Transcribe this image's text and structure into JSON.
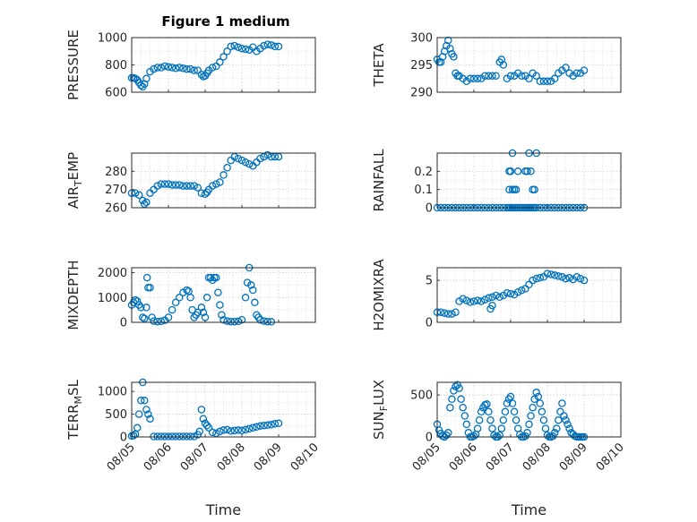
{
  "figure_title": "Figure 1 medium",
  "x_ticks": [
    "08/05",
    "08/06",
    "08/07",
    "08/08",
    "08/09",
    "08/10"
  ],
  "x_label": "Time",
  "marker_color": "#0072BD",
  "chart_data": [
    {
      "type": "scatter",
      "ylabel": "PRESSURE",
      "ylim": [
        600,
        1000
      ],
      "yticks": [
        "600",
        "800",
        "1000"
      ],
      "grid": true,
      "x_range_days": [
        0,
        5
      ],
      "series": [
        {
          "x": [
            0.0,
            0.05,
            0.1,
            0.15,
            0.2,
            0.25,
            0.3,
            0.35,
            0.4,
            0.5,
            0.6,
            0.7,
            0.8,
            0.9,
            1.0,
            1.1,
            1.2,
            1.3,
            1.4,
            1.5,
            1.6,
            1.7,
            1.8,
            1.9,
            1.95,
            2.0,
            2.05,
            2.1,
            2.2,
            2.3,
            2.4,
            2.5,
            2.6,
            2.7,
            2.8,
            2.9,
            3.0,
            3.1,
            3.2,
            3.3,
            3.4,
            3.5,
            3.6,
            3.7,
            3.8,
            3.9,
            4.0
          ],
          "y": [
            705,
            705,
            700,
            690,
            670,
            650,
            640,
            660,
            700,
            750,
            770,
            780,
            780,
            790,
            785,
            780,
            775,
            780,
            775,
            770,
            770,
            760,
            760,
            730,
            715,
            720,
            740,
            760,
            780,
            790,
            820,
            860,
            900,
            935,
            940,
            930,
            920,
            915,
            910,
            930,
            900,
            920,
            940,
            950,
            945,
            935,
            935
          ]
        }
      ]
    },
    {
      "type": "scatter",
      "ylabel": "THETA",
      "ylim": [
        290,
        300
      ],
      "yticks": [
        "290",
        "295",
        "300"
      ],
      "grid": true,
      "x_range_days": [
        0,
        5
      ],
      "series": [
        {
          "x": [
            0.0,
            0.05,
            0.1,
            0.15,
            0.2,
            0.25,
            0.3,
            0.35,
            0.4,
            0.45,
            0.5,
            0.55,
            0.6,
            0.7,
            0.8,
            0.9,
            1.0,
            1.1,
            1.2,
            1.3,
            1.4,
            1.5,
            1.6,
            1.7,
            1.75,
            1.8,
            1.9,
            2.0,
            2.1,
            2.2,
            2.3,
            2.4,
            2.5,
            2.6,
            2.7,
            2.8,
            2.9,
            3.0,
            3.1,
            3.2,
            3.3,
            3.4,
            3.5,
            3.6,
            3.7,
            3.8,
            3.9,
            4.0
          ],
          "y": [
            296,
            295.5,
            295.5,
            296.5,
            297.5,
            298.5,
            299.5,
            298,
            297,
            296.5,
            293.5,
            293,
            293,
            292.5,
            292,
            292.5,
            292.5,
            292.5,
            292.5,
            293,
            293,
            293,
            293,
            295.5,
            296,
            295,
            292.5,
            293,
            293,
            293.5,
            293,
            293,
            292.5,
            293.5,
            293,
            292,
            292,
            292,
            292,
            292.5,
            293.5,
            294,
            294.5,
            293.5,
            293,
            293.5,
            293.5,
            294
          ]
        }
      ]
    },
    {
      "type": "scatter",
      "ylabel": "AIR_TEMP",
      "ylim": [
        260,
        290
      ],
      "yticks": [
        "260",
        "270",
        "280"
      ],
      "grid": true,
      "x_range_days": [
        0,
        5
      ],
      "series": [
        {
          "x": [
            0.0,
            0.1,
            0.2,
            0.3,
            0.35,
            0.4,
            0.5,
            0.6,
            0.7,
            0.8,
            0.9,
            1.0,
            1.1,
            1.2,
            1.3,
            1.4,
            1.5,
            1.6,
            1.7,
            1.8,
            1.9,
            2.0,
            2.05,
            2.1,
            2.2,
            2.3,
            2.4,
            2.5,
            2.6,
            2.7,
            2.8,
            2.9,
            3.0,
            3.1,
            3.2,
            3.3,
            3.4,
            3.5,
            3.6,
            3.7,
            3.8,
            3.9,
            4.0
          ],
          "y": [
            268,
            268,
            267,
            264,
            262,
            263,
            268,
            270,
            272,
            273,
            273,
            273,
            272.5,
            272.5,
            272.5,
            272,
            272,
            272,
            272,
            271,
            268,
            267.5,
            268.5,
            270,
            272,
            273,
            274,
            278,
            282,
            286,
            288,
            287,
            286,
            285,
            284,
            283,
            285,
            287,
            288,
            289,
            288,
            288,
            288
          ]
        }
      ]
    },
    {
      "type": "scatter",
      "ylabel": "RAINFALL",
      "ylim": [
        0,
        0.3
      ],
      "yticks": [
        "0",
        "0.1",
        "0.2"
      ],
      "grid": true,
      "x_range_days": [
        0,
        5
      ],
      "series": [
        {
          "x": [
            0.0,
            0.1,
            0.2,
            0.3,
            0.4,
            0.5,
            0.6,
            0.7,
            0.8,
            0.9,
            1.0,
            1.1,
            1.2,
            1.3,
            1.4,
            1.5,
            1.6,
            1.7,
            1.8,
            1.9,
            1.95,
            2.0,
            2.05,
            2.1,
            2.15,
            2.2,
            2.25,
            2.3,
            2.35,
            2.4,
            2.45,
            2.5,
            2.55,
            2.6,
            2.65,
            2.7,
            2.8,
            2.9,
            3.0,
            3.1,
            3.2,
            3.3,
            3.4,
            3.5,
            3.6,
            3.7,
            3.8,
            3.9,
            4.0,
            1.96,
            1.96,
            2.0,
            2.05,
            2.05,
            2.1,
            2.15,
            2.2,
            2.4,
            2.45,
            2.5,
            2.55,
            2.6,
            2.65,
            2.7
          ],
          "y": [
            0,
            0,
            0,
            0,
            0,
            0,
            0,
            0,
            0,
            0,
            0,
            0,
            0,
            0,
            0,
            0,
            0,
            0,
            0,
            0,
            0,
            0,
            0,
            0,
            0,
            0,
            0,
            0,
            0,
            0,
            0,
            0,
            0,
            0,
            0,
            0,
            0,
            0,
            0,
            0,
            0,
            0,
            0,
            0,
            0,
            0,
            0,
            0,
            0,
            0.2,
            0.1,
            0.2,
            0.1,
            0.3,
            0.1,
            0.1,
            0.2,
            0.2,
            0.2,
            0.3,
            0.2,
            0.1,
            0.1,
            0.3
          ]
        }
      ]
    },
    {
      "type": "scatter",
      "ylabel": "MIXDEPTH",
      "ylim": [
        0,
        2200
      ],
      "yticks": [
        "0",
        "1000",
        "2000"
      ],
      "grid": true,
      "x_range_days": [
        0,
        5
      ],
      "series": [
        {
          "x": [
            0.0,
            0.05,
            0.1,
            0.15,
            0.2,
            0.25,
            0.3,
            0.35,
            0.4,
            0.42,
            0.45,
            0.5,
            0.55,
            0.6,
            0.7,
            0.8,
            0.9,
            1.0,
            1.1,
            1.2,
            1.3,
            1.4,
            1.5,
            1.55,
            1.6,
            1.65,
            1.7,
            1.75,
            1.8,
            1.9,
            1.95,
            2.0,
            2.05,
            2.1,
            2.15,
            2.2,
            2.25,
            2.3,
            2.35,
            2.4,
            2.45,
            2.5,
            2.6,
            2.7,
            2.8,
            2.9,
            3.0,
            3.1,
            3.15,
            3.2,
            3.25,
            3.3,
            3.35,
            3.4,
            3.45,
            3.5,
            3.6,
            3.7,
            3.8
          ],
          "y": [
            700,
            800,
            900,
            850,
            700,
            600,
            200,
            150,
            600,
            1800,
            1400,
            1400,
            200,
            50,
            30,
            40,
            80,
            200,
            500,
            800,
            1000,
            1200,
            1300,
            1250,
            1000,
            500,
            200,
            300,
            400,
            600,
            400,
            200,
            1000,
            1800,
            1800,
            1700,
            1800,
            1800,
            1200,
            700,
            300,
            100,
            50,
            30,
            30,
            40,
            100,
            1000,
            1600,
            2200,
            1500,
            1300,
            800,
            300,
            200,
            100,
            50,
            30,
            20
          ]
        }
      ]
    },
    {
      "type": "scatter",
      "ylabel": "H2OMIXRA",
      "ylim": [
        0,
        6.5
      ],
      "yticks": [
        "0",
        "5"
      ],
      "grid": true,
      "x_range_days": [
        0,
        5
      ],
      "series": [
        {
          "x": [
            0.0,
            0.1,
            0.2,
            0.3,
            0.4,
            0.5,
            0.6,
            0.7,
            0.8,
            0.9,
            1.0,
            1.1,
            1.2,
            1.3,
            1.4,
            1.5,
            1.6,
            1.7,
            1.8,
            1.9,
            2.0,
            2.1,
            2.2,
            2.3,
            2.4,
            2.5,
            2.6,
            2.7,
            2.8,
            2.9,
            3.0,
            3.1,
            3.2,
            3.3,
            3.4,
            3.5,
            3.6,
            3.7,
            3.8,
            3.9,
            4.0,
            1.45,
            1.5
          ],
          "y": [
            1.2,
            1.2,
            1.1,
            1.0,
            1.0,
            1.2,
            2.5,
            2.8,
            2.6,
            2.4,
            2.5,
            2.6,
            2.5,
            2.7,
            2.9,
            3.0,
            3.2,
            3.0,
            3.2,
            3.5,
            3.4,
            3.3,
            3.6,
            3.8,
            4.0,
            4.5,
            5.0,
            5.2,
            5.3,
            5.4,
            5.8,
            5.7,
            5.6,
            5.5,
            5.4,
            5.2,
            5.3,
            5.1,
            5.4,
            5.2,
            5.0,
            1.6,
            2.0
          ]
        }
      ]
    },
    {
      "type": "scatter",
      "ylabel": "TERR_MSL",
      "ylim": [
        0,
        1200
      ],
      "yticks": [
        "0",
        "500",
        "1000"
      ],
      "grid": true,
      "x_range_days": [
        0,
        5
      ],
      "series": [
        {
          "x": [
            0.0,
            0.05,
            0.1,
            0.15,
            0.2,
            0.25,
            0.3,
            0.35,
            0.4,
            0.45,
            0.5,
            0.6,
            0.7,
            0.8,
            0.9,
            1.0,
            1.1,
            1.2,
            1.3,
            1.4,
            1.5,
            1.6,
            1.7,
            1.8,
            1.85,
            1.9,
            1.95,
            2.0,
            2.05,
            2.1,
            2.2,
            2.3,
            2.4,
            2.5,
            2.6,
            2.7,
            2.8,
            2.9,
            3.0,
            3.1,
            3.2,
            3.3,
            3.4,
            3.5,
            3.6,
            3.7,
            3.8,
            3.9,
            4.0
          ],
          "y": [
            20,
            30,
            60,
            200,
            500,
            800,
            1200,
            800,
            600,
            500,
            400,
            10,
            10,
            10,
            10,
            10,
            10,
            10,
            10,
            10,
            10,
            10,
            10,
            50,
            120,
            600,
            400,
            300,
            250,
            200,
            100,
            80,
            120,
            150,
            160,
            130,
            140,
            150,
            140,
            160,
            180,
            200,
            220,
            240,
            250,
            260,
            270,
            290,
            300
          ]
        }
      ]
    },
    {
      "type": "scatter",
      "ylabel": "SUN_FLUX",
      "ylim": [
        0,
        650
      ],
      "yticks": [
        "0",
        "500"
      ],
      "grid": true,
      "x_range_days": [
        0,
        5
      ],
      "series": [
        {
          "x": [
            0.0,
            0.05,
            0.1,
            0.15,
            0.2,
            0.25,
            0.3,
            0.35,
            0.4,
            0.45,
            0.5,
            0.55,
            0.6,
            0.65,
            0.7,
            0.75,
            0.8,
            0.85,
            0.9,
            0.95,
            1.0,
            1.05,
            1.1,
            1.15,
            1.2,
            1.25,
            1.3,
            1.35,
            1.4,
            1.45,
            1.5,
            1.55,
            1.6,
            1.65,
            1.7,
            1.75,
            1.8,
            1.85,
            1.9,
            1.95,
            2.0,
            2.05,
            2.1,
            2.15,
            2.2,
            2.25,
            2.3,
            2.35,
            2.4,
            2.45,
            2.5,
            2.55,
            2.6,
            2.65,
            2.7,
            2.75,
            2.8,
            2.85,
            2.9,
            2.95,
            3.0,
            3.05,
            3.1,
            3.15,
            3.2,
            3.25,
            3.3,
            3.35,
            3.4,
            3.45,
            3.5,
            3.55,
            3.6,
            3.65,
            3.7,
            3.75,
            3.8,
            3.85,
            3.9,
            3.95,
            4.0
          ],
          "y": [
            150,
            80,
            40,
            10,
            0,
            20,
            50,
            350,
            450,
            550,
            600,
            620,
            580,
            450,
            350,
            250,
            150,
            50,
            0,
            0,
            10,
            30,
            100,
            200,
            300,
            350,
            380,
            390,
            300,
            200,
            100,
            20,
            0,
            0,
            20,
            100,
            200,
            300,
            400,
            450,
            480,
            400,
            300,
            200,
            100,
            30,
            0,
            0,
            10,
            50,
            150,
            250,
            350,
            450,
            530,
            480,
            400,
            300,
            200,
            100,
            20,
            0,
            0,
            10,
            50,
            100,
            200,
            300,
            400,
            250,
            200,
            150,
            100,
            50,
            30,
            10,
            0,
            0,
            0,
            0,
            0
          ]
        }
      ]
    }
  ]
}
